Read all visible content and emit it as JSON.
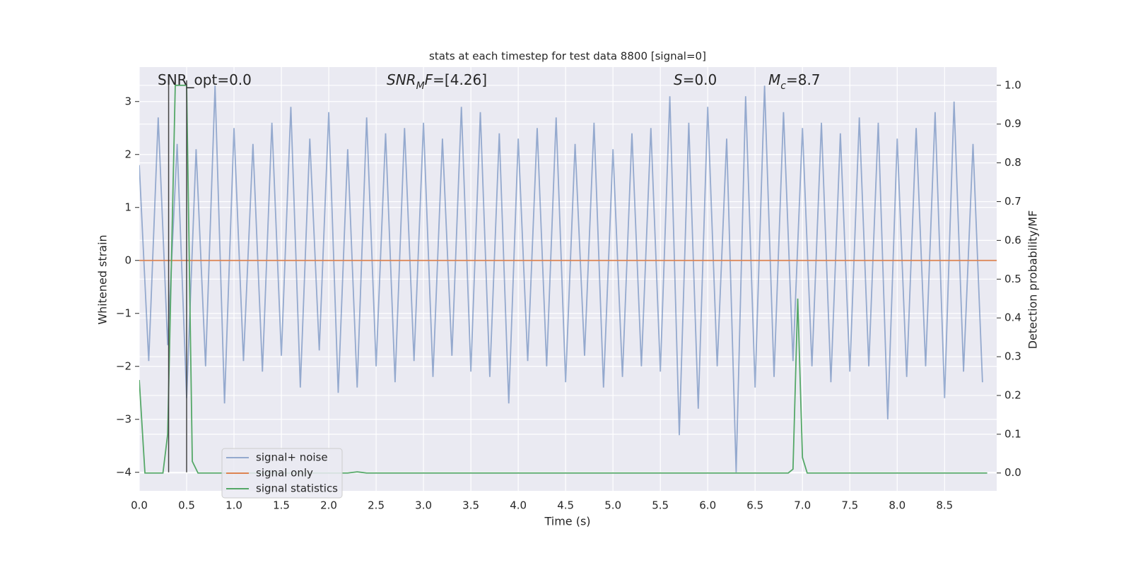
{
  "chart_data": {
    "type": "line",
    "title": "stats at each timestep for test data 8800 [signal=0]",
    "xlabel": "Time (s)",
    "ylabel": "Whitened strain",
    "y2label": "Detection probability/MF",
    "xlim": [
      0,
      9.05
    ],
    "ylim": [
      -4.35,
      3.65
    ],
    "y2lim": [
      -0.046,
      1.047
    ],
    "xticks": [
      {
        "value": 0,
        "label": "0.0"
      },
      0.5,
      {
        "value": 1,
        "label": "1.0"
      },
      1.5,
      {
        "value": 2,
        "label": "2.0"
      },
      2.5,
      {
        "value": 3,
        "label": "3.0"
      },
      3.5,
      {
        "value": 4,
        "label": "4.0"
      },
      4.5,
      {
        "value": 5,
        "label": "5.0"
      },
      5.5,
      {
        "value": 6,
        "label": "6.0"
      },
      6.5,
      {
        "value": 7,
        "label": "7.0"
      },
      7.5,
      {
        "value": 8,
        "label": "8.0"
      },
      8.5
    ],
    "yticks": [
      {
        "value": -4,
        "label": "−4"
      },
      {
        "value": -3,
        "label": "−3"
      },
      {
        "value": -2,
        "label": "−2"
      },
      {
        "value": -1,
        "label": "−1"
      },
      0,
      1,
      2,
      3
    ],
    "y2ticks": [
      {
        "value": 0,
        "label": "0.0"
      },
      0.1,
      0.2,
      0.3,
      0.4,
      0.5,
      0.6,
      0.7,
      0.8,
      0.9,
      {
        "value": 1,
        "label": "1.0"
      }
    ],
    "grid": true,
    "background": "#eaeaf2",
    "legend_loc": "lower left",
    "series": [
      {
        "name": "signal+ noise",
        "color": "#4c72b0",
        "opacity": 0.55,
        "x": [
          0.0,
          0.1,
          0.2,
          0.3,
          0.4,
          0.5,
          0.6,
          0.7,
          0.8,
          0.9,
          1.0,
          1.1,
          1.2,
          1.3,
          1.4,
          1.5,
          1.6,
          1.7,
          1.8,
          1.9,
          2.0,
          2.1,
          2.2,
          2.3,
          2.4,
          2.5,
          2.6,
          2.7,
          2.8,
          2.9,
          3.0,
          3.1,
          3.2,
          3.3,
          3.4,
          3.5,
          3.6,
          3.7,
          3.8,
          3.9,
          4.0,
          4.1,
          4.2,
          4.3,
          4.4,
          4.5,
          4.6,
          4.7,
          4.8,
          4.9,
          5.0,
          5.1,
          5.2,
          5.3,
          5.4,
          5.5,
          5.6,
          5.7,
          5.8,
          5.9,
          6.0,
          6.1,
          6.2,
          6.3,
          6.4,
          6.5,
          6.6,
          6.7,
          6.8,
          6.9,
          7.0,
          7.1,
          7.2,
          7.3,
          7.4,
          7.5,
          7.6,
          7.7,
          7.8,
          7.9,
          8.0,
          8.1,
          8.2,
          8.3,
          8.4,
          8.5,
          8.6,
          8.7,
          8.8,
          8.9
        ],
        "values": [
          1.8,
          -1.9,
          2.7,
          -1.6,
          2.2,
          -2.6,
          2.1,
          -2.0,
          3.3,
          -2.7,
          2.5,
          -1.9,
          2.2,
          -2.1,
          2.6,
          -1.8,
          2.9,
          -2.4,
          2.3,
          -1.7,
          2.8,
          -2.5,
          2.1,
          -2.4,
          2.7,
          -2.0,
          2.4,
          -2.3,
          2.5,
          -1.9,
          2.6,
          -2.2,
          2.3,
          -1.8,
          2.9,
          -2.1,
          2.8,
          -2.2,
          2.4,
          -2.7,
          2.3,
          -1.9,
          2.5,
          -2.0,
          2.7,
          -2.3,
          2.2,
          -1.8,
          2.6,
          -2.4,
          2.1,
          -2.2,
          2.4,
          -2.0,
          2.5,
          -2.1,
          3.1,
          -3.3,
          2.6,
          -2.8,
          2.9,
          -2.0,
          2.3,
          -4.0,
          3.1,
          -2.4,
          3.3,
          -2.2,
          2.8,
          -1.9,
          2.5,
          -2.0,
          2.6,
          -2.3,
          2.4,
          -2.1,
          2.7,
          -2.0,
          2.6,
          -3.0,
          2.3,
          -2.2,
          2.5,
          -2.0,
          2.8,
          -2.6,
          3.0,
          -2.1,
          2.2,
          -2.3
        ]
      },
      {
        "name": "signal only",
        "color": "#dd8452",
        "opacity": 1,
        "x": [
          0.0,
          9.05
        ],
        "values": [
          0,
          0
        ]
      },
      {
        "name": "signal statistics",
        "color": "#55a868",
        "opacity": 1,
        "axis": "y2",
        "x": [
          0.0,
          0.06,
          0.25,
          0.3,
          0.38,
          0.5,
          0.56,
          0.62,
          2.2,
          2.3,
          2.4,
          6.85,
          6.9,
          6.95,
          7.0,
          7.05,
          8.95
        ],
        "values": [
          0.24,
          0.0,
          0.0,
          0.1,
          1.0,
          1.0,
          0.03,
          0.0,
          0.0,
          0.003,
          0.0,
          0.0,
          0.01,
          0.45,
          0.04,
          0.0,
          0.0
        ]
      }
    ],
    "vlines": {
      "color": "#444444",
      "x": [
        0.31,
        0.5
      ],
      "ymin": -4,
      "ymax": 3.4
    },
    "annotations": [
      [
        {
          "t": "SNR_opt=0.0"
        }
      ],
      [
        {
          "t": "SNR",
          "italic": true
        },
        {
          "t": "M",
          "italic": true,
          "sub": true
        },
        {
          "t": "F",
          "italic": true
        },
        {
          "t": "=[4.26]"
        }
      ],
      [
        {
          "t": "S",
          "italic": true
        },
        {
          "t": "=0.0"
        }
      ],
      [
        {
          "t": "M",
          "italic": true
        },
        {
          "t": "c",
          "italic": true,
          "sub": true
        },
        {
          "t": "=8.7"
        }
      ]
    ]
  }
}
